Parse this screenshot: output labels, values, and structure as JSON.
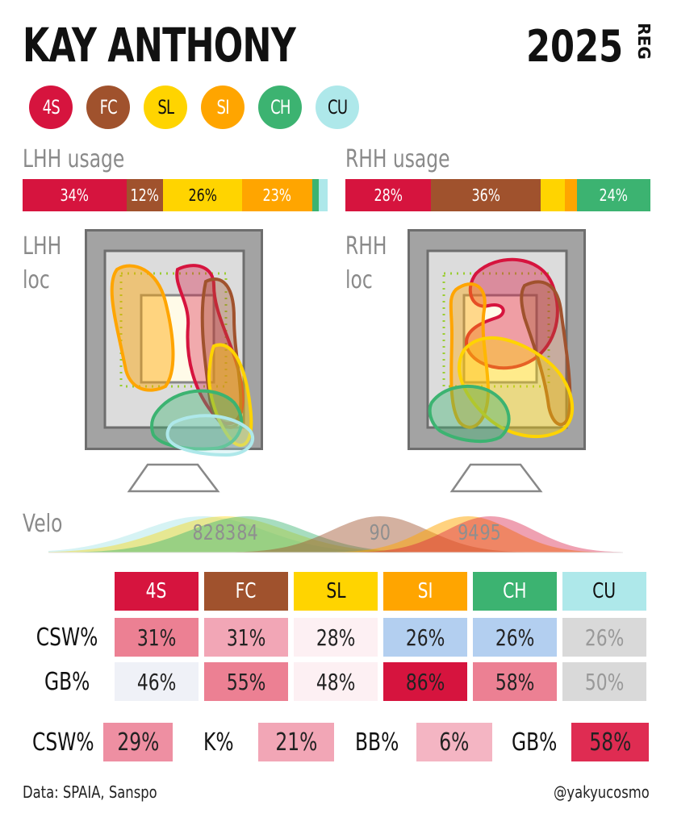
{
  "header": {
    "player_name": "KAY ANTHONY",
    "year": "2025",
    "season_tag": "REG"
  },
  "pitch_types": [
    {
      "code": "4S",
      "color": "#d6143e",
      "text_color": "#ffffff"
    },
    {
      "code": "FC",
      "color": "#a0522d",
      "text_color": "#ffffff"
    },
    {
      "code": "SL",
      "color": "#ffd400",
      "text_color": "#111111"
    },
    {
      "code": "SI",
      "color": "#ffa500",
      "text_color": "#ffffff"
    },
    {
      "code": "CH",
      "color": "#3cb371",
      "text_color": "#ffffff"
    },
    {
      "code": "CU",
      "color": "#aee8ea",
      "text_color": "#111111"
    }
  ],
  "usage": {
    "lhh_label": "LHH usage",
    "rhh_label": "RHH usage",
    "lhh": [
      {
        "pitch": "4S",
        "value": 34,
        "label": "34%"
      },
      {
        "pitch": "FC",
        "value": 12,
        "label": "12%"
      },
      {
        "pitch": "SL",
        "value": 26,
        "label": "26%"
      },
      {
        "pitch": "SI",
        "value": 23,
        "label": "23%"
      },
      {
        "pitch": "CH",
        "value": 2,
        "label": ""
      },
      {
        "pitch": "CU",
        "value": 3,
        "label": ""
      }
    ],
    "rhh": [
      {
        "pitch": "4S",
        "value": 28,
        "label": "28%"
      },
      {
        "pitch": "FC",
        "value": 36,
        "label": "36%"
      },
      {
        "pitch": "SL",
        "value": 8,
        "label": ""
      },
      {
        "pitch": "SI",
        "value": 4,
        "label": ""
      },
      {
        "pitch": "CH",
        "value": 24,
        "label": "24%"
      }
    ]
  },
  "location": {
    "lhh_label_line1": "LHH",
    "lhh_label_line2": "loc",
    "rhh_label_line1": "RHH",
    "rhh_label_line2": "loc"
  },
  "velo": {
    "label": "Velo",
    "display_labels": [
      {
        "text": "82",
        "pitch": "CU",
        "value": 82
      },
      {
        "text": "83",
        "pitch": "SL",
        "value": 83
      },
      {
        "text": "84",
        "pitch": "CH",
        "value": 84
      },
      {
        "text": "90",
        "pitch": "FC",
        "value": 90
      },
      {
        "text": "94",
        "pitch": "SI",
        "value": 94
      },
      {
        "text": "95",
        "pitch": "4S",
        "value": 95
      }
    ]
  },
  "chart_data": {
    "type": "table",
    "title": "",
    "velo_distribution": {
      "type": "area",
      "xlabel": "Velo",
      "series": [
        {
          "name": "CU",
          "mean": 82
        },
        {
          "name": "SL",
          "mean": 83
        },
        {
          "name": "CH",
          "mean": 84
        },
        {
          "name": "FC",
          "mean": 90
        },
        {
          "name": "SI",
          "mean": 94
        },
        {
          "name": "4S",
          "mean": 95
        }
      ]
    },
    "columns": [
      "4S",
      "FC",
      "SL",
      "SI",
      "CH",
      "CU"
    ],
    "rows": [
      {
        "label": "CSW%",
        "values": [
          "31%",
          "31%",
          "28%",
          "26%",
          "26%",
          "26%"
        ],
        "colors": [
          "#ec8093",
          "#f2a6b6",
          "#fdf0f3",
          "#b3cff0",
          "#b3cff0",
          "#d9d9d9"
        ],
        "text_colors": [
          "#222222",
          "#222222",
          "#222222",
          "#222222",
          "#222222",
          "#999999"
        ]
      },
      {
        "label": "GB%",
        "values": [
          "46%",
          "55%",
          "48%",
          "86%",
          "58%",
          "50%"
        ],
        "colors": [
          "#eff1f7",
          "#ec8093",
          "#fdf0f3",
          "#d6143e",
          "#ec8093",
          "#d9d9d9"
        ],
        "text_colors": [
          "#222222",
          "#222222",
          "#222222",
          "#222222",
          "#222222",
          "#999999"
        ]
      }
    ]
  },
  "summary": [
    {
      "label": "CSW%",
      "value": "29%",
      "color": "#ee8fa2"
    },
    {
      "label": "K%",
      "value": "21%",
      "color": "#f2a6b6"
    },
    {
      "label": "BB%",
      "value": "6%",
      "color": "#f4b5c3"
    },
    {
      "label": "GB%",
      "value": "58%",
      "color": "#df2c52"
    }
  ],
  "footer": {
    "source": "Data: SPAIA, Sanspo",
    "handle": "@yakyucosmo"
  }
}
